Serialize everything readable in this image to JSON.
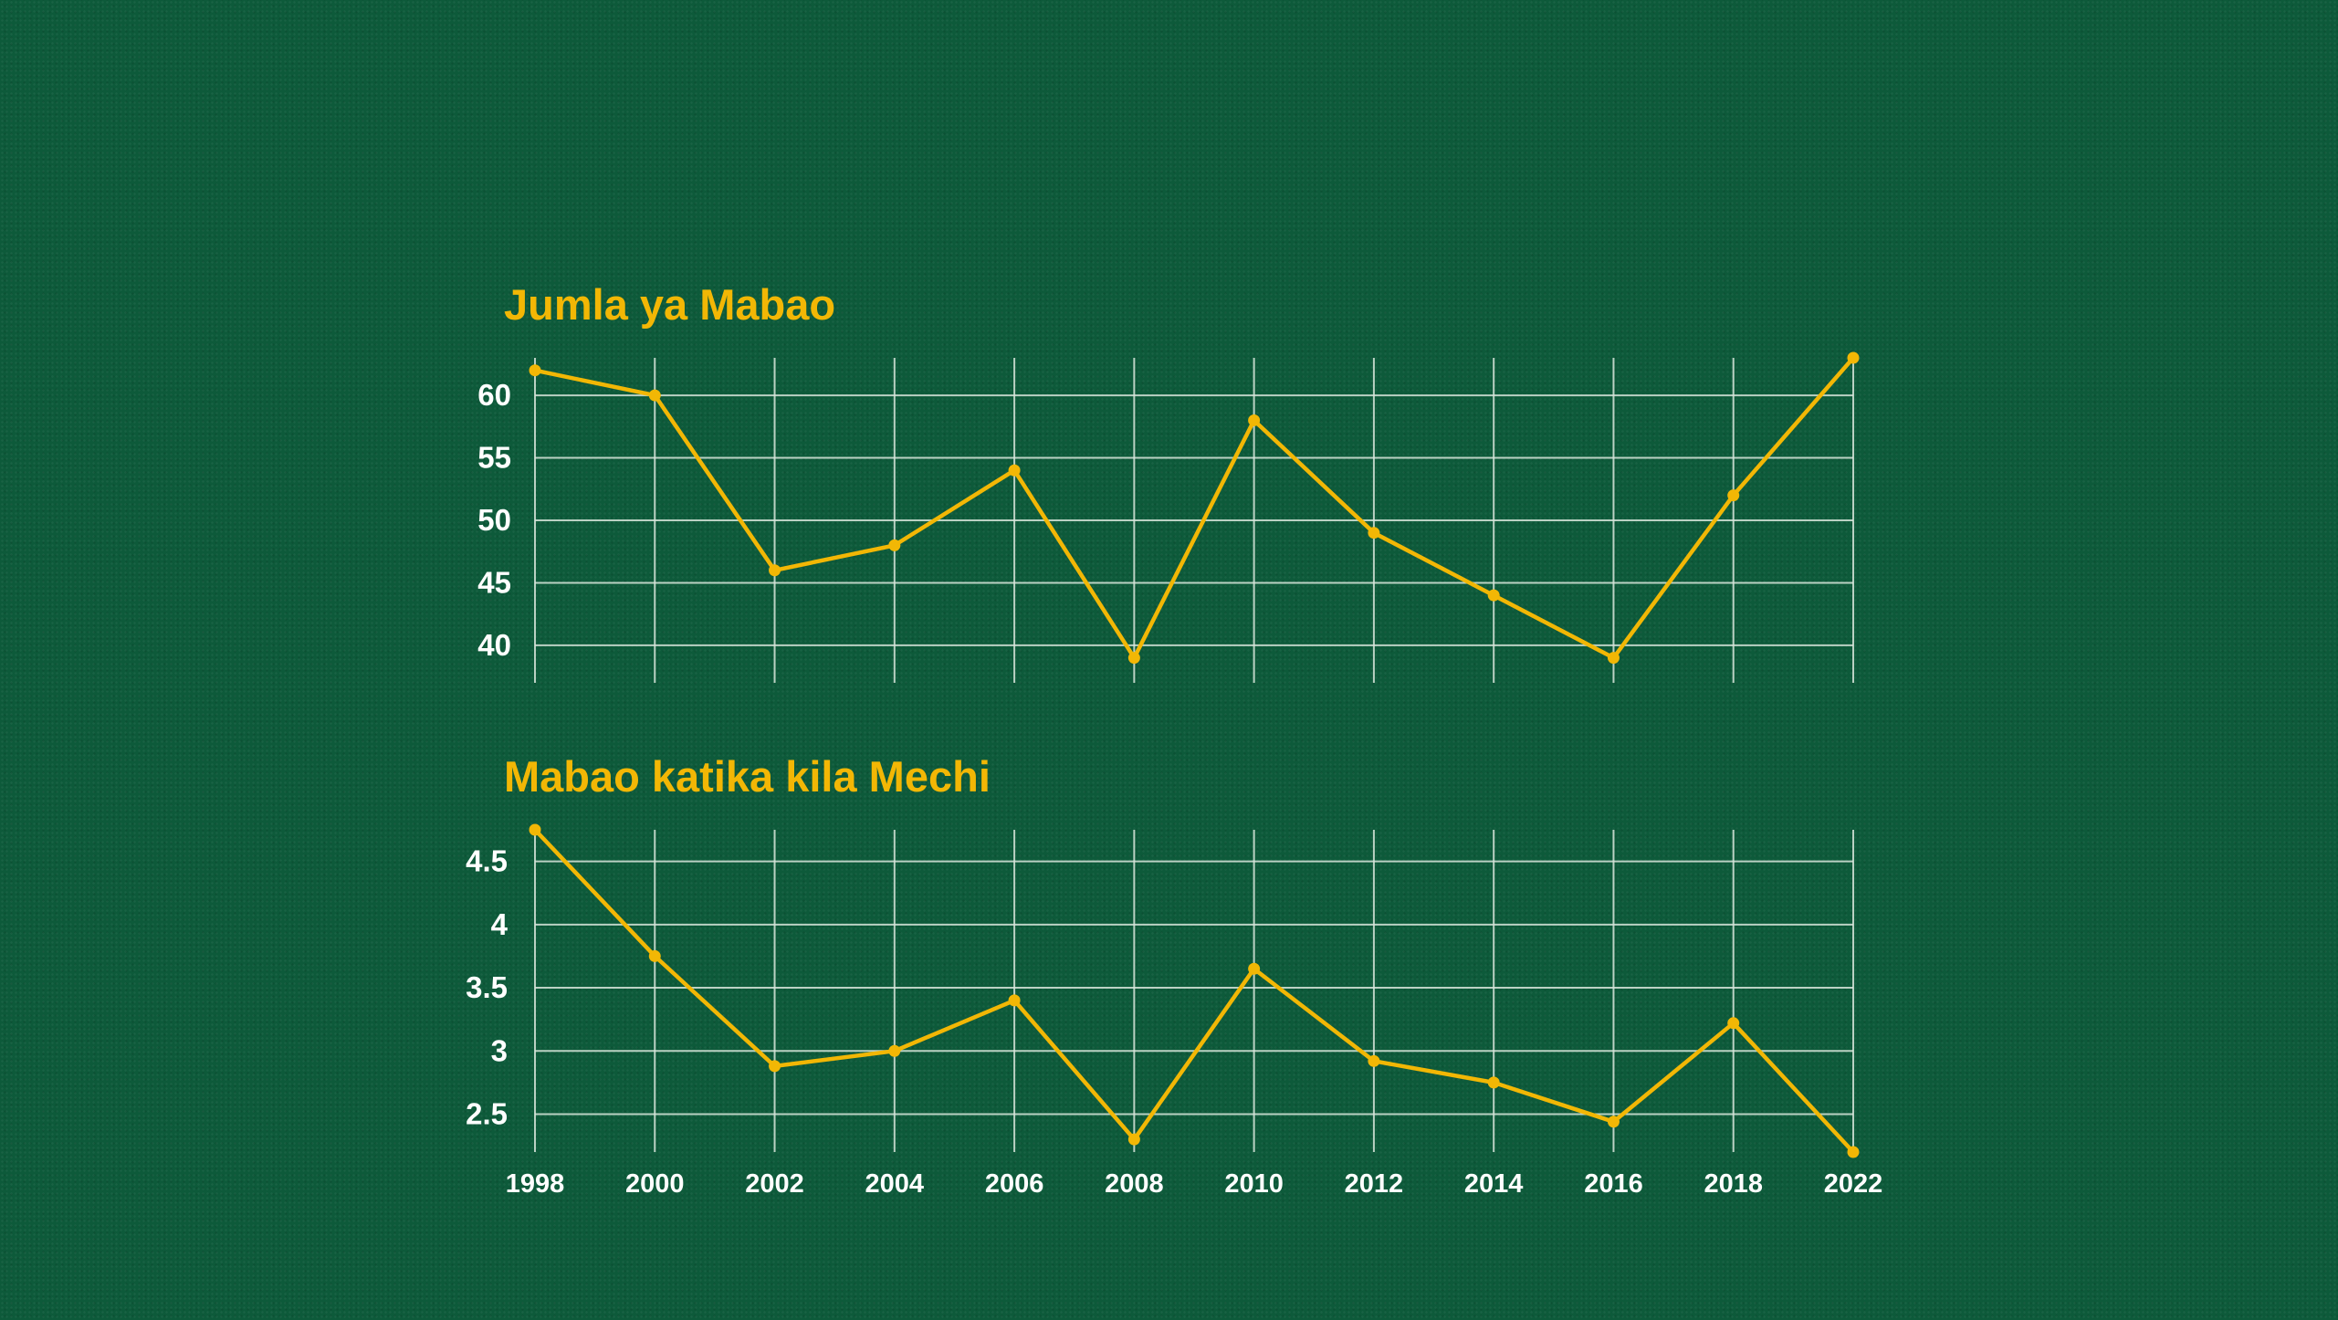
{
  "colors": {
    "background": "#0d5a3a",
    "accent": "#f2b705",
    "grid": "#d9e6dc",
    "tick_text": "#ffffff"
  },
  "chart_data": [
    {
      "type": "line",
      "title": "Jumla ya Mabao",
      "xlabel": "",
      "ylabel": "",
      "x": [
        "1998",
        "2000",
        "2002",
        "2004",
        "2006",
        "2008",
        "2010",
        "2012",
        "2014",
        "2016",
        "2018",
        "2022"
      ],
      "yticks": [
        "40",
        "45",
        "50",
        "55",
        "60"
      ],
      "ylim": [
        37,
        63
      ],
      "grid": true,
      "show_x_tick_labels": false,
      "series": [
        {
          "values": [
            62,
            60,
            46,
            48,
            54,
            39,
            58,
            49,
            44,
            39,
            52,
            63
          ]
        }
      ]
    },
    {
      "type": "line",
      "title": "Mabao katika kila Mechi",
      "xlabel": "",
      "ylabel": "",
      "x": [
        "1998",
        "2000",
        "2002",
        "2004",
        "2006",
        "2008",
        "2010",
        "2012",
        "2014",
        "2016",
        "2018",
        "2022"
      ],
      "yticks": [
        "2.5",
        "3",
        "3.5",
        "4",
        "4.5"
      ],
      "ylim": [
        2.2,
        4.75
      ],
      "grid": true,
      "show_x_tick_labels": true,
      "series": [
        {
          "values": [
            4.75,
            3.75,
            2.88,
            3.0,
            3.4,
            2.3,
            3.65,
            2.92,
            2.75,
            2.44,
            3.22,
            2.2
          ]
        }
      ]
    }
  ]
}
